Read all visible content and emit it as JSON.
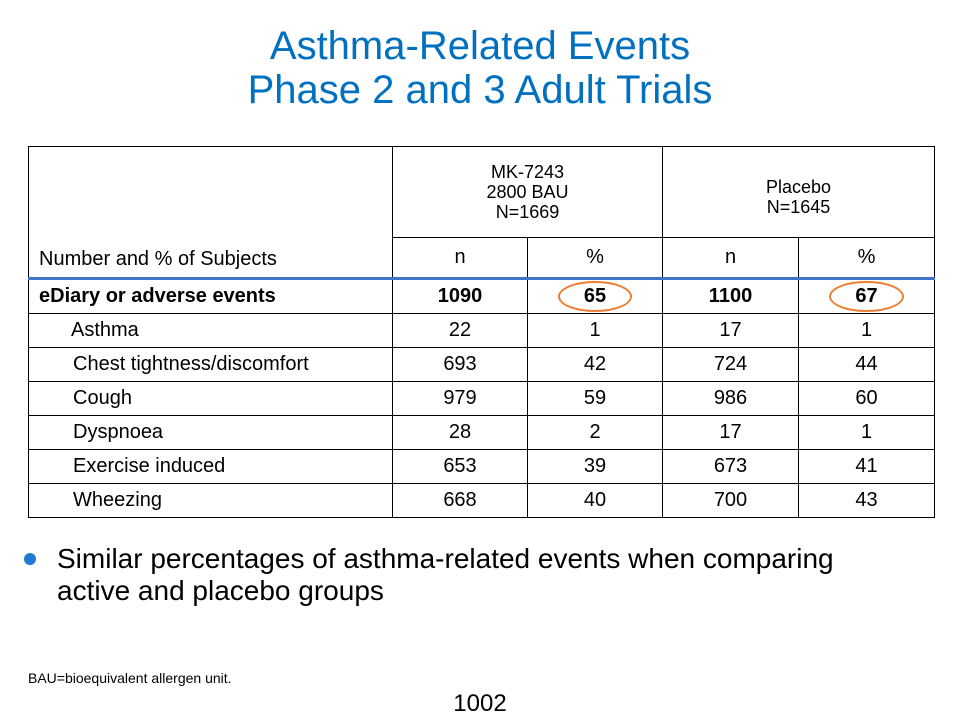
{
  "title": {
    "line1": "Asthma-Related Events",
    "line2": "Phase 2 and 3 Adult Trials"
  },
  "table": {
    "corner_label": "Number and % of Subjects",
    "groups": [
      {
        "line1": "MK-7243",
        "line2": "2800 BAU",
        "line3": "N=1669"
      },
      {
        "line1": "Placebo",
        "line2": "N=1645"
      }
    ],
    "subheaders": [
      "n",
      "%",
      "n",
      "%"
    ],
    "rows": [
      {
        "label": "eDiary or adverse events",
        "values": [
          "1090",
          "65",
          "1100",
          "67"
        ]
      },
      {
        "label": "Asthma",
        "values": [
          "22",
          "1",
          "17",
          "1"
        ]
      },
      {
        "label": "Chest tightness/discomfort",
        "values": [
          "693",
          "42",
          "724",
          "44"
        ]
      },
      {
        "label": "Cough",
        "values": [
          "979",
          "59",
          "986",
          "60"
        ]
      },
      {
        "label": "Dyspnoea",
        "values": [
          "28",
          "2",
          "17",
          "1"
        ]
      },
      {
        "label": "Exercise induced",
        "values": [
          "653",
          "39",
          "673",
          "41"
        ]
      },
      {
        "label": "Wheezing",
        "values": [
          "668",
          "40",
          "700",
          "43"
        ]
      }
    ]
  },
  "bullet": {
    "text": "Similar percentages of asthma-related events when comparing active and placebo groups"
  },
  "footnote": "BAU=bioequivalent allergen unit.",
  "page_number": "1002",
  "colors": {
    "title": "#0070C0",
    "header_rule": "#4472C4",
    "highlight_circle": "#ED7D31",
    "bullet_dot": "#1F7BD2"
  }
}
